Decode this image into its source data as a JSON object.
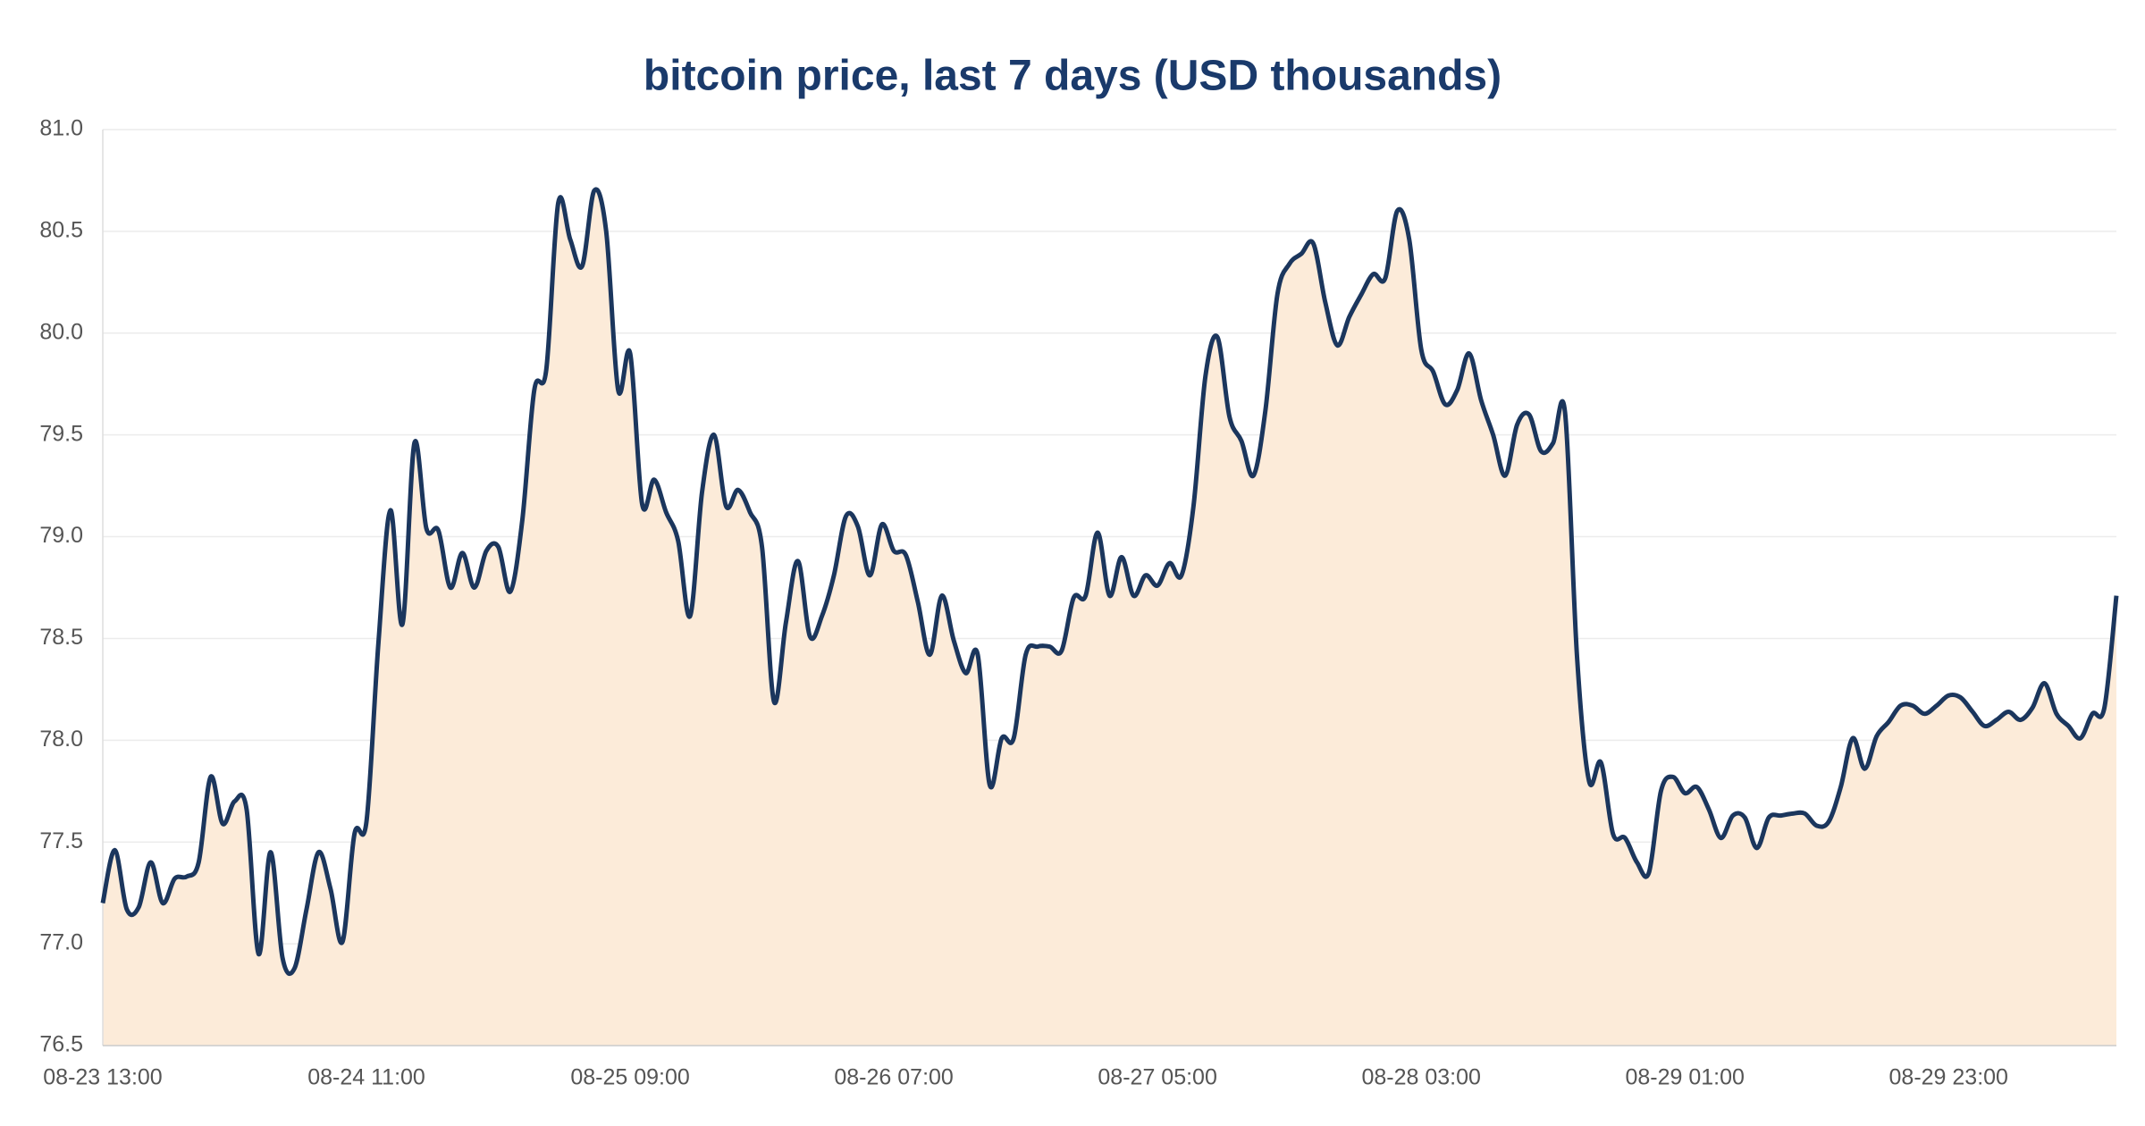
{
  "chart_data": {
    "type": "area",
    "title": "bitcoin price, last 7 days  (USD thousands)",
    "categories": [
      "08-23 13:00",
      null,
      null,
      null,
      null,
      null,
      null,
      null,
      null,
      null,
      null,
      null,
      null,
      null,
      null,
      null,
      null,
      null,
      null,
      null,
      null,
      null,
      "08-24 11:00",
      null,
      null,
      null,
      null,
      null,
      null,
      null,
      null,
      null,
      null,
      null,
      null,
      null,
      null,
      null,
      null,
      null,
      null,
      null,
      null,
      null,
      "08-25 09:00",
      null,
      null,
      null,
      null,
      null,
      null,
      null,
      null,
      null,
      null,
      null,
      null,
      null,
      null,
      null,
      null,
      null,
      null,
      null,
      null,
      null,
      "08-26 07:00",
      null,
      null,
      null,
      null,
      null,
      null,
      null,
      null,
      null,
      null,
      null,
      null,
      null,
      null,
      null,
      null,
      null,
      null,
      null,
      null,
      null,
      "08-27 05:00",
      null,
      null,
      null,
      null,
      null,
      null,
      null,
      null,
      null,
      null,
      null,
      null,
      null,
      null,
      null,
      null,
      null,
      null,
      null,
      null,
      null,
      "08-28 03:00",
      null,
      null,
      null,
      null,
      null,
      null,
      null,
      null,
      null,
      null,
      null,
      null,
      null,
      null,
      null,
      null,
      null,
      null,
      null,
      null,
      null,
      "08-29 01:00",
      null,
      null,
      null,
      null,
      null,
      null,
      null,
      null,
      null,
      null,
      null,
      null,
      null,
      null,
      null,
      null,
      null,
      null,
      null,
      null,
      null,
      "08-29 23:00",
      null,
      null,
      null,
      null,
      null,
      null,
      null,
      null,
      null,
      null,
      null,
      null,
      null,
      null
    ],
    "values": [
      77.2,
      77.46,
      77.17,
      77.18,
      77.4,
      77.2,
      77.32,
      77.33,
      77.4,
      77.82,
      77.59,
      77.7,
      77.66,
      76.95,
      77.45,
      76.93,
      76.88,
      77.17,
      77.45,
      77.27,
      77.01,
      77.54,
      77.6,
      78.48,
      79.13,
      78.57,
      79.46,
      79.04,
      79.03,
      78.75,
      78.92,
      78.75,
      78.93,
      78.95,
      78.73,
      79.08,
      79.72,
      79.82,
      80.64,
      80.46,
      80.33,
      80.7,
      80.5,
      79.72,
      79.9,
      79.16,
      79.28,
      79.12,
      78.98,
      78.61,
      79.22,
      79.5,
      79.15,
      79.23,
      79.12,
      78.95,
      78.19,
      78.58,
      78.88,
      78.51,
      78.61,
      78.81,
      79.1,
      79.05,
      78.81,
      79.06,
      78.93,
      78.91,
      78.68,
      78.42,
      78.71,
      78.49,
      78.33,
      78.42,
      77.78,
      78.01,
      78.01,
      78.42,
      78.46,
      78.46,
      78.44,
      78.7,
      78.71,
      79.02,
      78.71,
      78.9,
      78.71,
      78.81,
      78.76,
      78.87,
      78.81,
      79.15,
      79.79,
      79.98,
      79.59,
      79.47,
      79.3,
      79.62,
      80.19,
      80.34,
      80.39,
      80.44,
      80.15,
      79.94,
      80.08,
      80.19,
      80.29,
      80.27,
      80.6,
      80.46,
      79.92,
      79.81,
      79.65,
      79.72,
      79.9,
      79.67,
      79.5,
      79.3,
      79.55,
      79.6,
      79.42,
      79.46,
      79.61,
      78.41,
      77.8,
      77.89,
      77.54,
      77.52,
      77.4,
      77.35,
      77.75,
      77.82,
      77.74,
      77.77,
      77.66,
      77.52,
      77.63,
      77.62,
      77.47,
      77.62,
      77.63,
      77.64,
      77.64,
      77.58,
      77.6,
      77.77,
      78.01,
      77.86,
      78.02,
      78.09,
      78.17,
      78.17,
      78.13,
      78.17,
      78.22,
      78.21,
      78.14,
      78.07,
      78.1,
      78.14,
      78.1,
      78.16,
      78.28,
      78.13,
      78.07,
      78.01,
      78.13,
      78.16,
      78.71
    ],
    "color": "#1b365d",
    "fill": "#fcebd9",
    "ylim": [
      76.5,
      81.0
    ],
    "yticks": [
      {
        "value": 76.5,
        "label": "76.5"
      },
      {
        "value": 77,
        "label": "77.0"
      },
      {
        "value": 77.5,
        "label": "77.5"
      },
      {
        "value": 78,
        "label": "78.0"
      },
      {
        "value": 78.5,
        "label": "78.5"
      },
      {
        "value": 79,
        "label": "79.0"
      },
      {
        "value": 79.5,
        "label": "79.5"
      },
      {
        "value": 80,
        "label": "80.0"
      },
      {
        "value": 80.5,
        "label": "80.5"
      },
      {
        "value": 81,
        "label": "81.0"
      }
    ],
    "grid": true
  }
}
